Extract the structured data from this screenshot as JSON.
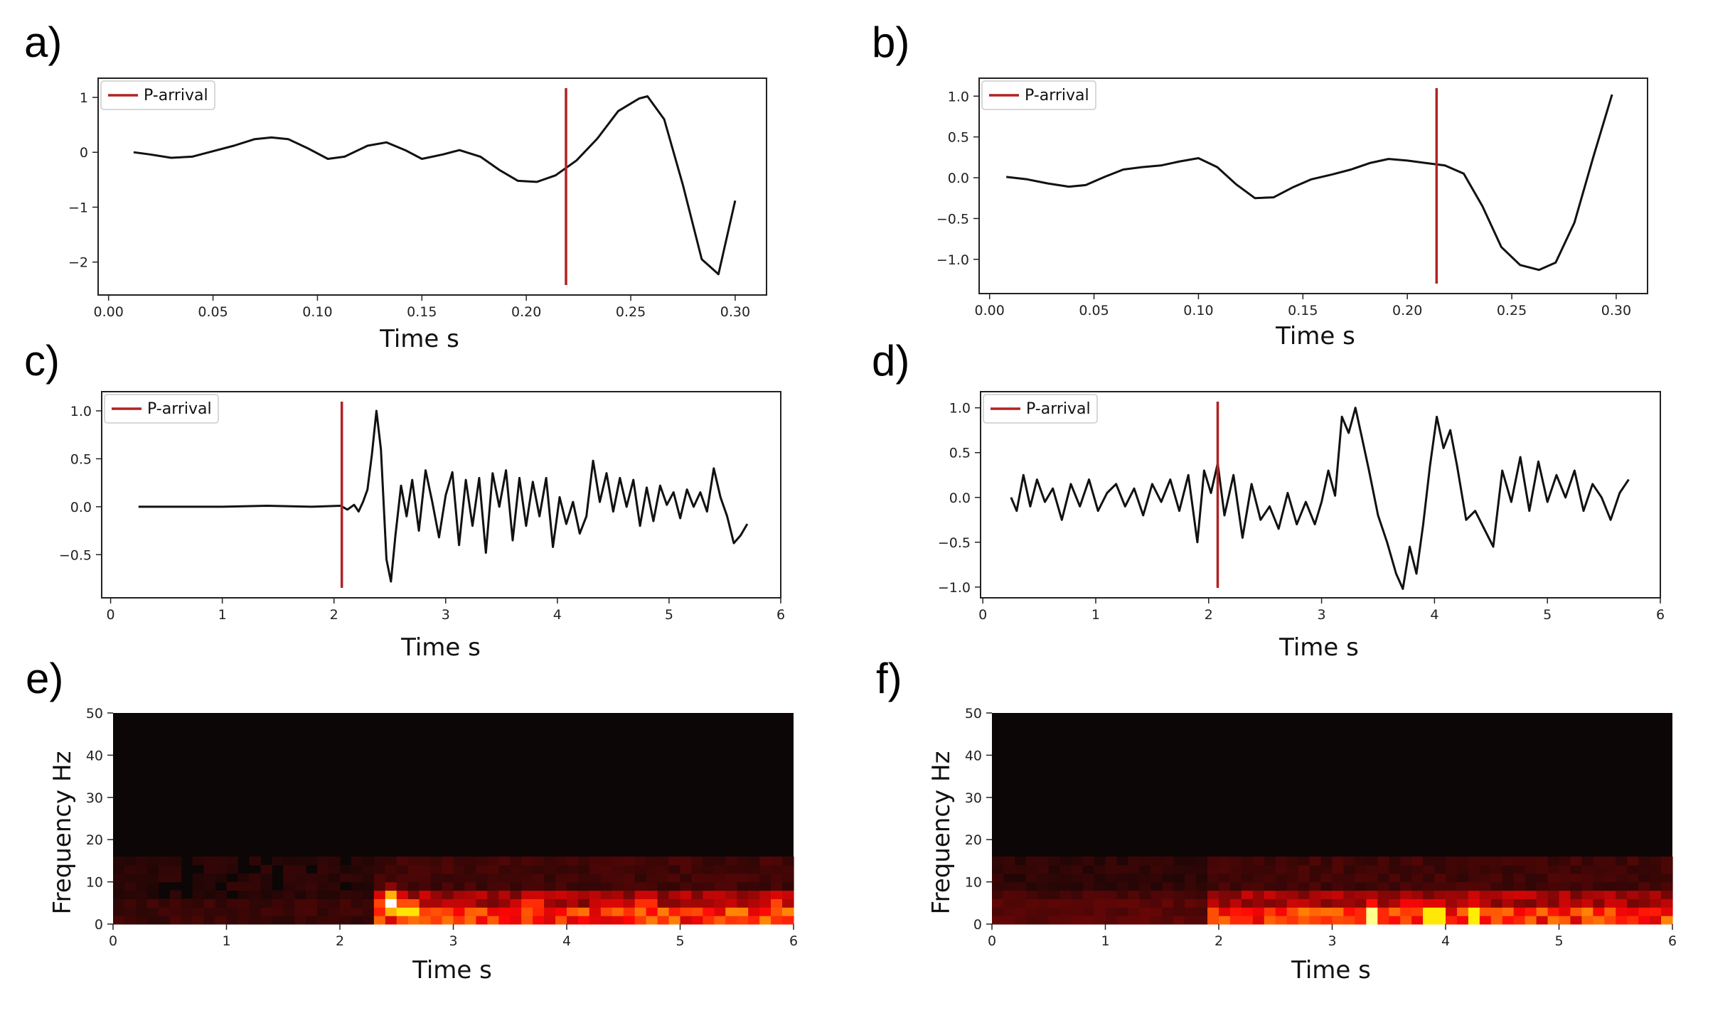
{
  "colors": {
    "trace": "#111111",
    "marker": "#b22222",
    "axes": "#222222",
    "spec_bg": "#0c0606"
  },
  "chart_data": [
    {
      "id": "a",
      "type": "line",
      "panel_label": "a)",
      "xlabel": "Time  s",
      "ylabel": "",
      "xlim": [
        -0.005,
        0.315
      ],
      "ylim": [
        -2.6,
        1.35
      ],
      "xticks": [
        0.0,
        0.05,
        0.1,
        0.15,
        0.2,
        0.25,
        0.3
      ],
      "xtick_labels": [
        "0.00",
        "0.05",
        "0.10",
        "0.15",
        "0.20",
        "0.25",
        "0.30"
      ],
      "yticks": [
        1,
        0,
        -1,
        -2
      ],
      "ytick_labels": [
        "1",
        "0",
        "−1",
        "−2"
      ],
      "legend": "P-arrival",
      "p_arrival": 0.219,
      "x": [
        0.012,
        0.02,
        0.03,
        0.04,
        0.05,
        0.06,
        0.07,
        0.078,
        0.086,
        0.095,
        0.105,
        0.113,
        0.124,
        0.133,
        0.142,
        0.15,
        0.16,
        0.168,
        0.178,
        0.187,
        0.196,
        0.205,
        0.214,
        0.224,
        0.234,
        0.244,
        0.254,
        0.258,
        0.266,
        0.275,
        0.284,
        0.292,
        0.3
      ],
      "y": [
        0.0,
        -0.04,
        -0.1,
        -0.08,
        0.02,
        0.12,
        0.24,
        0.27,
        0.24,
        0.08,
        -0.12,
        -0.08,
        0.12,
        0.18,
        0.04,
        -0.12,
        -0.04,
        0.04,
        -0.08,
        -0.32,
        -0.52,
        -0.54,
        -0.42,
        -0.15,
        0.25,
        0.75,
        0.98,
        1.02,
        0.6,
        -0.6,
        -1.95,
        -2.22,
        -0.88
      ]
    },
    {
      "id": "b",
      "type": "line",
      "panel_label": "b)",
      "xlabel": "Time  s",
      "ylabel": "",
      "xlim": [
        -0.005,
        0.315
      ],
      "ylim": [
        -1.42,
        1.22
      ],
      "xticks": [
        0.0,
        0.05,
        0.1,
        0.15,
        0.2,
        0.25,
        0.3
      ],
      "xtick_labels": [
        "0.00",
        "0.05",
        "0.10",
        "0.15",
        "0.20",
        "0.25",
        "0.30"
      ],
      "yticks": [
        1.0,
        0.5,
        0.0,
        -0.5,
        -1.0
      ],
      "ytick_labels": [
        "1.0",
        "0.5",
        "0.0",
        "−0.5",
        "−1.0"
      ],
      "legend": "P-arrival",
      "p_arrival": 0.214,
      "x": [
        0.008,
        0.018,
        0.028,
        0.038,
        0.046,
        0.055,
        0.064,
        0.073,
        0.082,
        0.091,
        0.1,
        0.109,
        0.118,
        0.127,
        0.136,
        0.145,
        0.154,
        0.164,
        0.173,
        0.182,
        0.191,
        0.2,
        0.209,
        0.218,
        0.227,
        0.236,
        0.245,
        0.254,
        0.263,
        0.271,
        0.28,
        0.289,
        0.298
      ],
      "y": [
        0.01,
        -0.02,
        -0.07,
        -0.11,
        -0.09,
        0.01,
        0.1,
        0.13,
        0.15,
        0.2,
        0.24,
        0.13,
        -0.08,
        -0.25,
        -0.24,
        -0.12,
        -0.02,
        0.04,
        0.1,
        0.18,
        0.23,
        0.21,
        0.18,
        0.15,
        0.05,
        -0.35,
        -0.85,
        -1.07,
        -1.13,
        -1.04,
        -0.55,
        0.25,
        1.02
      ]
    },
    {
      "id": "c",
      "type": "line",
      "panel_label": "c)",
      "xlabel": "Time  s",
      "ylabel": "",
      "xlim": [
        -0.08,
        6.0
      ],
      "ylim": [
        -0.95,
        1.2
      ],
      "xticks": [
        0,
        1,
        2,
        3,
        4,
        5,
        6
      ],
      "xtick_labels": [
        "0",
        "1",
        "2",
        "3",
        "4",
        "5",
        "6"
      ],
      "yticks": [
        1.0,
        0.5,
        0.0,
        -0.5
      ],
      "ytick_labels": [
        "1.0",
        "0.5",
        "0.0",
        "−0.5"
      ],
      "legend": "P-arrival",
      "p_arrival": 2.07,
      "x": [
        0.25,
        0.6,
        1.0,
        1.4,
        1.8,
        2.06,
        2.12,
        2.18,
        2.22,
        2.26,
        2.3,
        2.34,
        2.38,
        2.42,
        2.47,
        2.51,
        2.55,
        2.6,
        2.65,
        2.7,
        2.76,
        2.82,
        2.88,
        2.94,
        3.0,
        3.06,
        3.12,
        3.18,
        3.24,
        3.3,
        3.36,
        3.42,
        3.48,
        3.54,
        3.6,
        3.66,
        3.72,
        3.78,
        3.84,
        3.9,
        3.96,
        4.02,
        4.08,
        4.14,
        4.2,
        4.26,
        4.32,
        4.38,
        4.44,
        4.5,
        4.56,
        4.62,
        4.68,
        4.74,
        4.8,
        4.86,
        4.92,
        4.98,
        5.04,
        5.1,
        5.16,
        5.22,
        5.28,
        5.34,
        5.4,
        5.46,
        5.52,
        5.58,
        5.64,
        5.7
      ],
      "y": [
        0.0,
        0.0,
        0.0,
        0.01,
        0.0,
        0.01,
        -0.03,
        0.02,
        -0.05,
        0.05,
        0.18,
        0.55,
        1.0,
        0.6,
        -0.55,
        -0.78,
        -0.3,
        0.22,
        -0.1,
        0.28,
        -0.25,
        0.38,
        0.05,
        -0.32,
        0.12,
        0.36,
        -0.4,
        0.28,
        -0.2,
        0.3,
        -0.48,
        0.35,
        0.0,
        0.38,
        -0.35,
        0.3,
        -0.2,
        0.26,
        -0.1,
        0.3,
        -0.42,
        0.1,
        -0.18,
        0.05,
        -0.28,
        -0.1,
        0.48,
        0.05,
        0.35,
        -0.05,
        0.3,
        0.0,
        0.28,
        -0.2,
        0.2,
        -0.15,
        0.22,
        0.02,
        0.15,
        -0.12,
        0.18,
        0.0,
        0.15,
        -0.05,
        0.4,
        0.1,
        -0.1,
        -0.38,
        -0.3,
        -0.18
      ]
    },
    {
      "id": "d",
      "type": "line",
      "panel_label": "d)",
      "xlabel": "Time  s",
      "ylabel": "",
      "xlim": [
        -0.02,
        6.0
      ],
      "ylim": [
        -1.12,
        1.18
      ],
      "xticks": [
        0,
        1,
        2,
        3,
        4,
        5,
        6
      ],
      "xtick_labels": [
        "0",
        "1",
        "2",
        "3",
        "4",
        "5",
        "6"
      ],
      "yticks": [
        1.0,
        0.5,
        0.0,
        -0.5,
        -1.0
      ],
      "ytick_labels": [
        "1.0",
        "0.5",
        "0.0",
        "−0.5",
        "−1.0"
      ],
      "legend": "P-arrival",
      "p_arrival": 2.08,
      "x": [
        0.25,
        0.3,
        0.36,
        0.42,
        0.48,
        0.55,
        0.62,
        0.7,
        0.78,
        0.86,
        0.94,
        1.02,
        1.1,
        1.18,
        1.26,
        1.34,
        1.42,
        1.5,
        1.58,
        1.66,
        1.74,
        1.82,
        1.9,
        1.96,
        2.02,
        2.08,
        2.14,
        2.22,
        2.3,
        2.38,
        2.46,
        2.54,
        2.62,
        2.7,
        2.78,
        2.86,
        2.94,
        3.0,
        3.06,
        3.12,
        3.18,
        3.24,
        3.3,
        3.36,
        3.42,
        3.5,
        3.58,
        3.66,
        3.72,
        3.78,
        3.84,
        3.9,
        3.96,
        4.02,
        4.08,
        4.14,
        4.2,
        4.28,
        4.36,
        4.44,
        4.52,
        4.6,
        4.68,
        4.76,
        4.84,
        4.92,
        5.0,
        5.08,
        5.16,
        5.24,
        5.32,
        5.4,
        5.48,
        5.56,
        5.64,
        5.72
      ],
      "y": [
        0.0,
        -0.15,
        0.25,
        -0.1,
        0.2,
        -0.05,
        0.1,
        -0.25,
        0.15,
        -0.1,
        0.2,
        -0.15,
        0.05,
        0.15,
        -0.1,
        0.1,
        -0.2,
        0.15,
        -0.05,
        0.2,
        -0.15,
        0.25,
        -0.5,
        0.3,
        0.05,
        0.38,
        -0.2,
        0.25,
        -0.45,
        0.15,
        -0.25,
        -0.1,
        -0.35,
        0.05,
        -0.3,
        -0.05,
        -0.3,
        -0.05,
        0.3,
        0.02,
        0.9,
        0.72,
        1.0,
        0.65,
        0.3,
        -0.2,
        -0.5,
        -0.85,
        -1.02,
        -0.55,
        -0.85,
        -0.3,
        0.35,
        0.9,
        0.55,
        0.75,
        0.35,
        -0.25,
        -0.15,
        -0.35,
        -0.55,
        0.3,
        -0.05,
        0.45,
        -0.15,
        0.4,
        -0.05,
        0.25,
        0.0,
        0.3,
        -0.15,
        0.15,
        0.0,
        -0.25,
        0.05,
        0.2
      ]
    },
    {
      "id": "e",
      "type": "heatmap",
      "panel_label": "e)",
      "xlabel": "Time  s",
      "ylabel": "Frequency  Hz",
      "xlim": [
        0,
        6
      ],
      "ylim": [
        0,
        50
      ],
      "xticks": [
        0,
        1,
        2,
        3,
        4,
        5,
        6
      ],
      "xtick_labels": [
        "0",
        "1",
        "2",
        "3",
        "4",
        "5",
        "6"
      ],
      "yticks": [
        0,
        10,
        20,
        30,
        40,
        50
      ],
      "ytick_labels": [
        "0",
        "10",
        "20",
        "30",
        "40",
        "50"
      ],
      "colormap": "hot",
      "n_time_bins": 60,
      "n_freq_bins": 25,
      "energy_onset": 2.25,
      "hotspots": [
        {
          "t": 2.45,
          "f": 5,
          "value": 1.0
        },
        {
          "t": 2.6,
          "f": 3,
          "value": 0.9
        },
        {
          "t": 3.7,
          "f": 5,
          "value": 0.55
        },
        {
          "t": 4.4,
          "f": 3,
          "value": 0.6
        },
        {
          "t": 4.7,
          "f": 5,
          "value": 0.55
        },
        {
          "t": 5.85,
          "f": 5,
          "value": 0.5
        }
      ]
    },
    {
      "id": "f",
      "type": "heatmap",
      "panel_label": "f)",
      "xlabel": "Time  s",
      "ylabel": "Frequency  Hz",
      "xlim": [
        0,
        6
      ],
      "ylim": [
        0,
        50
      ],
      "xticks": [
        0,
        1,
        2,
        3,
        4,
        5,
        6
      ],
      "xtick_labels": [
        "0",
        "1",
        "2",
        "3",
        "4",
        "5",
        "6"
      ],
      "yticks": [
        0,
        10,
        20,
        30,
        40,
        50
      ],
      "ytick_labels": [
        "0",
        "10",
        "20",
        "30",
        "40",
        "50"
      ],
      "colormap": "hot",
      "n_time_bins": 60,
      "n_freq_bins": 25,
      "energy_onset": 1.9,
      "hotspots": [
        {
          "t": 3.35,
          "f": 2,
          "value": 1.0
        },
        {
          "t": 3.9,
          "f": 2,
          "value": 1.0
        },
        {
          "t": 4.25,
          "f": 2,
          "value": 0.85
        },
        {
          "t": 3.7,
          "f": 4,
          "value": 0.5
        },
        {
          "t": 4.6,
          "f": 2,
          "value": 0.5
        }
      ]
    }
  ]
}
